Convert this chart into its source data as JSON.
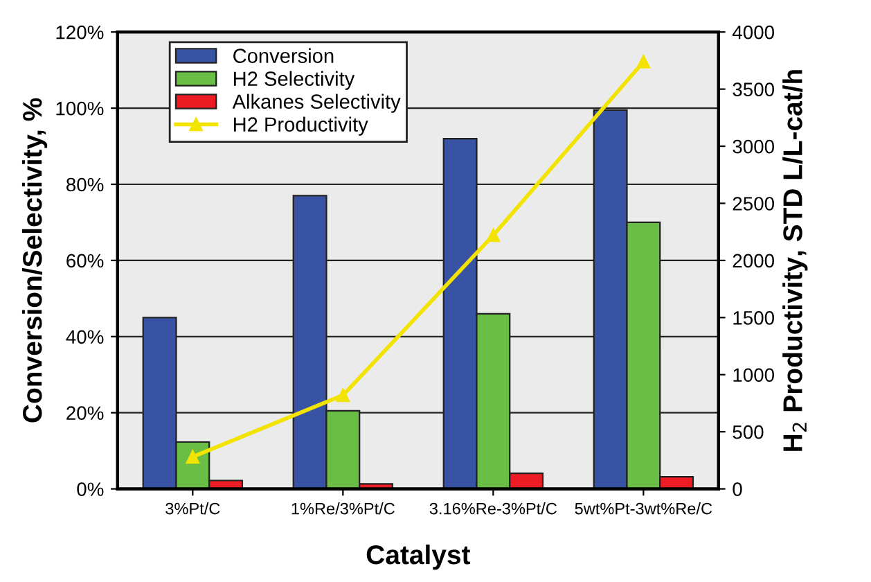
{
  "chart_data": {
    "type": "bar",
    "xlabel": "Catalyst",
    "ylabel": "Conversion/Selectivity, %",
    "y2label": "H$_{2}$ Productivity, STD L/L-cat/h",
    "categories": [
      "3%Pt/C",
      "1%Re/3%Pt/C",
      "3.16%Re-3%Pt/C",
      "5wt%Pt-3wt%Re/C"
    ],
    "series": [
      {
        "name": "Conversion",
        "color": "#3853a4",
        "values": [
          45,
          77,
          92,
          99.5
        ]
      },
      {
        "name": "H2 Selectivity",
        "color": "#6abd45",
        "values": [
          12.3,
          20.5,
          46,
          70
        ]
      },
      {
        "name": "Alkanes Selectivity",
        "color": "#ed1c24",
        "values": [
          2.2,
          1.3,
          4.1,
          3.2
        ]
      },
      {
        "name": "H2 Productivity",
        "type": "line",
        "axis": "y2",
        "color": "#f2e400",
        "marker": "triangle",
        "values": [
          280,
          820,
          2220,
          3740
        ]
      }
    ],
    "ylim": [
      0,
      120
    ],
    "yticks": [
      {
        "value": 0,
        "label": "0%"
      },
      {
        "value": 20,
        "label": "20%"
      },
      {
        "value": 40,
        "label": "40%"
      },
      {
        "value": 60,
        "label": "60%"
      },
      {
        "value": 80,
        "label": "80%"
      },
      {
        "value": 100,
        "label": "100%"
      },
      {
        "value": 120,
        "label": "120%"
      }
    ],
    "y2lim": [
      0,
      4000
    ],
    "y2ticks": [
      0,
      500,
      1000,
      1500,
      2000,
      2500,
      3000,
      3500,
      4000
    ],
    "grid": "y",
    "legend": "top left"
  }
}
